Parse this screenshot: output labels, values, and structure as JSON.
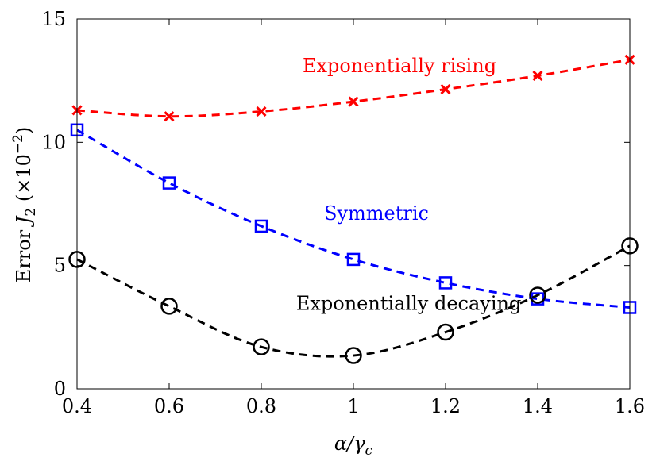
{
  "chart_data": {
    "type": "line",
    "xlabel": "α/γc",
    "xlabel_parts": {
      "main": "α/γ",
      "sub": "c"
    },
    "ylabel": "Error J2 (×10−2)",
    "ylabel_parts": {
      "prefix": "Error ",
      "var": "J",
      "sub": "2",
      "paren_open": " (×10",
      "sup": "−2",
      "paren_close": ")"
    },
    "xlim": [
      0.4,
      1.6
    ],
    "ylim": [
      0,
      15
    ],
    "xticks": [
      0.4,
      0.6,
      0.8,
      1.0,
      1.2,
      1.4,
      1.6
    ],
    "xtick_labels": [
      "0.4",
      "0.6",
      "0.8",
      "1",
      "1.2",
      "1.4",
      "1.6"
    ],
    "yticks": [
      0,
      5,
      10,
      15
    ],
    "ytick_labels": [
      "0",
      "5",
      "10",
      "15"
    ],
    "grid": false,
    "x": [
      0.4,
      0.6,
      0.8,
      1.0,
      1.2,
      1.4,
      1.6
    ],
    "series": [
      {
        "name": "Exponentially rising",
        "marker": "x",
        "color": "#ff0000",
        "values": [
          11.3,
          11.05,
          11.25,
          11.65,
          12.15,
          12.7,
          13.35
        ],
        "label_anchor": [
          1.1,
          12.85
        ]
      },
      {
        "name": "Symmetric",
        "marker": "square",
        "color": "#0000ff",
        "values": [
          10.5,
          8.35,
          6.6,
          5.25,
          4.3,
          3.65,
          3.3
        ],
        "label_anchor": [
          1.05,
          6.85
        ]
      },
      {
        "name": "Exponentially decaying",
        "marker": "circle",
        "color": "#000000",
        "values": [
          5.25,
          3.35,
          1.7,
          1.35,
          2.3,
          3.8,
          5.8
        ],
        "label_anchor": [
          1.12,
          3.2
        ]
      }
    ]
  }
}
